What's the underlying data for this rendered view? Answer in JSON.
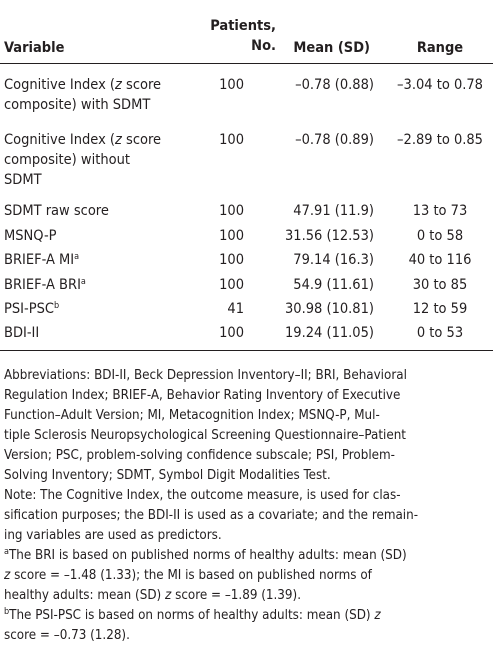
{
  "table": {
    "header": {
      "variable": "Variable",
      "patients": [
        "Patients,",
        "No."
      ],
      "mean": "Mean (SD)",
      "range": "Range"
    },
    "rows": [
      {
        "variable": [
          "Cognitive Index (",
          "z",
          " score",
          "composite) with SDMT"
        ],
        "patients": 100,
        "mean": "–0.78 (0.88)",
        "range": "–3.04 to 0.78"
      },
      {
        "variable": [
          "Cognitive Index (",
          "z",
          " score",
          "composite) without",
          "SDMT"
        ],
        "patients": 100,
        "mean": "–0.78 (0.89)",
        "range": "–2.89 to 0.85"
      },
      {
        "variable": [
          "SDMT raw score"
        ],
        "patients": 100,
        "mean": "47.91 (11.9)",
        "range": "13 to 73"
      },
      {
        "variable": [
          "MSNQ-P"
        ],
        "patients": 100,
        "mean": "31.56 (12.53)",
        "range": "0 to 58"
      },
      {
        "variable": [
          "BRIEF-A MI",
          "a"
        ],
        "patients": 100,
        "mean": "79.14 (16.3)",
        "range": "40 to 116"
      },
      {
        "variable": [
          "BRIEF-A BRI",
          "a"
        ],
        "patients": 100,
        "mean": "54.9 (11.61)",
        "range": "30 to 85"
      },
      {
        "variable": [
          "PSI-PSC",
          "b"
        ],
        "patients": 41,
        "mean": "30.98 (10.81)",
        "range": "12 to 59"
      },
      {
        "variable": [
          "BDI-II"
        ],
        "patients": 100,
        "mean": "19.24 (11.05)",
        "range": "0 to 53"
      }
    ]
  },
  "notes": {
    "abbreviations": [
      "Abbreviations: BDI-II, Beck Depression Inventory–II; BRI, Behavioral",
      "Regulation Index; BRIEF-A, Behavior Rating Inventory of Executive",
      "Function–Adult Version; MI, Metacognition Index; MSNQ-P, Mul-",
      "tiple Sclerosis Neuropsychological Screening Questionnaire–Patient",
      "Version; PSC, problem-solving confidence subscale; PSI, Problem-",
      "Solving Inventory; SDMT, Symbol Digit Modalities Test."
    ],
    "note": [
      "Note: The Cognitive Index, the outcome measure, is used for clas-",
      "sification purposes; the BDI-II is used as a covariate; and the remain-",
      "ing variables are used as predictors."
    ],
    "a": [
      [
        "a",
        "The BRI is based on published norms of healthy adults: mean (SD)"
      ],
      [
        "z",
        " score = –1.48 (1.33); the MI is based on published norms of"
      ],
      [
        "healthy adults: mean (SD) ",
        "z",
        " score = –1.89 (1.39)."
      ]
    ],
    "b": [
      [
        "b",
        "The PSI-PSC is based on norms of healthy adults: mean (SD) ",
        "z"
      ],
      [
        "score = –0.73 (1.28)."
      ]
    ]
  }
}
